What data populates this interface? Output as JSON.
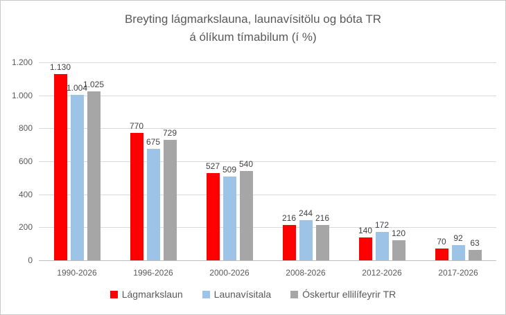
{
  "chart_data": {
    "type": "bar",
    "title": "Breyting lágmarkslauna, launavísitölu og bóta TR á ólíkum tímabilum (í %)",
    "title_lines": [
      "Breyting lágmarkslauna, launavísitölu og bóta TR",
      "á ólíkum tímabilum (í %)"
    ],
    "categories": [
      "1990-2026",
      "1996-2026",
      "2000-2026",
      "2008-2026",
      "2012-2026",
      "2017-2026"
    ],
    "series": [
      {
        "name": "Lágmarkslaun",
        "color": "#ff0000",
        "values": [
          1130,
          770,
          527,
          216,
          140,
          70
        ],
        "labels": [
          "1.130",
          "770",
          "527",
          "216",
          "140",
          "70"
        ]
      },
      {
        "name": "Launavísitala",
        "color": "#9dc3e6",
        "values": [
          1004,
          675,
          509,
          244,
          172,
          92
        ],
        "labels": [
          "1.004",
          "675",
          "509",
          "244",
          "172",
          "92"
        ]
      },
      {
        "name": "Óskertur ellilífeyrir TR",
        "color": "#a6a6a6",
        "values": [
          1025,
          729,
          540,
          216,
          120,
          63
        ],
        "labels": [
          "1.025",
          "729",
          "540",
          "216",
          "120",
          "63"
        ]
      }
    ],
    "ylim": [
      0,
      1200
    ],
    "y_ticks": [
      {
        "value": 0,
        "label": "0"
      },
      {
        "value": 200,
        "label": "200"
      },
      {
        "value": 400,
        "label": "400"
      },
      {
        "value": 600,
        "label": "600"
      },
      {
        "value": 800,
        "label": "800"
      },
      {
        "value": 1000,
        "label": "1.000"
      },
      {
        "value": 1200,
        "label": "1.200"
      }
    ],
    "xlabel": "",
    "ylabel": "",
    "grid": true,
    "legend_position": "bottom"
  },
  "colors": {
    "gridline": "#d9d9d9",
    "axis_line": "#bfbfbf",
    "title_text": "#595959",
    "tick_text": "#595959",
    "data_label_text": "#404040",
    "border": "#c9c9c9",
    "background": "#ffffff"
  }
}
